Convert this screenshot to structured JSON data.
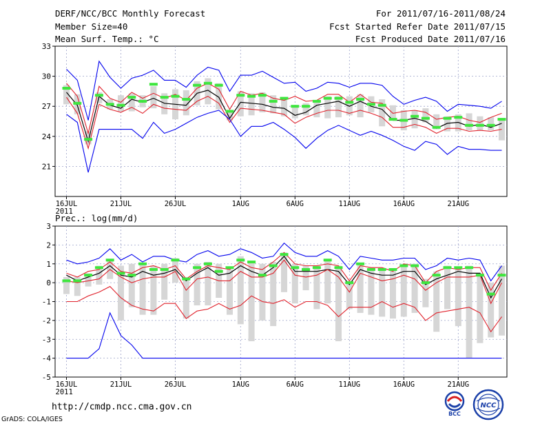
{
  "header": {
    "title": "DERF/NCC/BCC Monthly Forecast",
    "member_size": "Member Size=40",
    "variable": "Mean Surf. Temp.: °C",
    "period": "For 2011/07/16-2011/08/24",
    "started": "Fcst Started Refer Date 2011/07/15",
    "produced": "Fcst Produced Date 2011/07/16"
  },
  "footer": {
    "url": "http://cmdp.ncc.cma.gov.cn",
    "grads": "GrADS: COLA/IGES",
    "logo_left": "BCC",
    "logo_right": "NCC"
  },
  "colors": {
    "max_line": "#0000ee",
    "spread_line": "#e0202a",
    "mean_line": "#000000",
    "ensemble_bar": "#d6d6d6",
    "member_mark": "#3ee63e",
    "grid": "#9aa0c8"
  },
  "chart_data": [
    {
      "type": "line",
      "title": "Mean Surf. Temp.: °C",
      "xlabel": "",
      "ylabel": "°C",
      "ylim": [
        18,
        33
      ],
      "yticks": [
        21,
        24,
        27,
        30,
        33
      ],
      "x_tick_labels": [
        {
          "day": 0,
          "label": "16JUL",
          "sub": "2011"
        },
        {
          "day": 5,
          "label": "21JUL"
        },
        {
          "day": 10,
          "label": "26JUL"
        },
        {
          "day": 16,
          "label": "1AUG"
        },
        {
          "day": 21,
          "label": "6AUG"
        },
        {
          "day": 26,
          "label": "11AUG"
        },
        {
          "day": 31,
          "label": "16AUG"
        },
        {
          "day": 36,
          "label": "21AUG"
        }
      ],
      "grid": true,
      "series": [
        {
          "name": "max",
          "color": "#0000ee",
          "values": [
            30.7,
            29.6,
            25.6,
            31.5,
            29.9,
            28.8,
            29.8,
            30.1,
            30.6,
            29.6,
            29.6,
            28.9,
            30.1,
            30.9,
            30.6,
            28.5,
            30.1,
            30.1,
            30.5,
            29.9,
            29.3,
            29.4,
            28.5,
            28.8,
            29.4,
            29.3,
            28.9,
            29.3,
            29.3,
            29.1,
            28.0,
            27.2,
            27.6,
            27.9,
            27.5,
            26.5,
            27.2,
            27.1,
            27.0,
            26.8,
            27.5
          ]
        },
        {
          "name": "upper",
          "color": "#e0202a",
          "values": [
            29.3,
            28.0,
            24.3,
            29.0,
            27.8,
            27.4,
            28.4,
            27.8,
            28.3,
            27.8,
            28.2,
            27.6,
            28.8,
            29.3,
            28.7,
            26.7,
            28.5,
            28.1,
            28.3,
            27.8,
            27.6,
            28.0,
            27.5,
            27.6,
            28.2,
            28.2,
            27.4,
            28.2,
            27.4,
            27.3,
            26.3,
            26.5,
            26.6,
            26.4,
            25.7,
            25.9,
            26.0,
            25.6,
            25.4,
            25.9,
            26.3
          ]
        },
        {
          "name": "mean",
          "color": "#000000",
          "values": [
            28.4,
            27.1,
            23.5,
            28.0,
            27.1,
            26.8,
            27.7,
            27.4,
            27.8,
            27.3,
            27.2,
            27.1,
            28.3,
            28.6,
            27.9,
            25.8,
            27.4,
            27.3,
            27.2,
            26.9,
            26.8,
            26.1,
            26.4,
            27.1,
            27.3,
            27.5,
            27.0,
            27.5,
            27.0,
            26.7,
            25.6,
            25.6,
            25.8,
            25.5,
            24.8,
            25.3,
            25.4,
            25.0,
            25.2,
            24.9,
            25.3
          ]
        },
        {
          "name": "lower",
          "color": "#e0202a",
          "values": [
            27.9,
            26.3,
            22.8,
            27.2,
            26.7,
            26.4,
            26.9,
            26.3,
            27.2,
            26.8,
            26.7,
            26.6,
            27.5,
            28.0,
            27.3,
            25.4,
            26.8,
            26.7,
            26.6,
            26.4,
            26.2,
            25.3,
            25.9,
            26.3,
            26.6,
            26.6,
            26.3,
            26.6,
            26.3,
            25.9,
            24.9,
            24.9,
            25.2,
            24.9,
            24.3,
            24.8,
            24.8,
            24.5,
            24.6,
            24.5,
            24.7
          ]
        },
        {
          "name": "min",
          "color": "#0000ee",
          "values": [
            26.2,
            25.4,
            20.4,
            24.7,
            24.7,
            24.7,
            24.7,
            23.8,
            25.4,
            24.3,
            24.7,
            25.3,
            25.9,
            26.3,
            26.6,
            25.7,
            24.0,
            25.0,
            25.0,
            25.4,
            24.7,
            23.9,
            22.8,
            23.8,
            24.6,
            25.1,
            24.6,
            24.1,
            24.5,
            24.1,
            23.6,
            23.0,
            22.6,
            23.5,
            23.2,
            22.2,
            23.0,
            22.7,
            22.7,
            22.6,
            22.6
          ]
        }
      ],
      "bars": [
        [
          27.2,
          29.1
        ],
        [
          26.2,
          28.2
        ],
        [
          23.2,
          24.5
        ],
        [
          27.3,
          28.4
        ],
        [
          26.7,
          27.7
        ],
        [
          26.5,
          28.1
        ],
        [
          26.5,
          28.3
        ],
        [
          26.9,
          28.1
        ],
        [
          26.8,
          29.0
        ],
        [
          26.2,
          28.3
        ],
        [
          25.7,
          28.7
        ],
        [
          26.1,
          28.6
        ],
        [
          27.1,
          29.5
        ],
        [
          27.2,
          29.8
        ],
        [
          26.7,
          29.3
        ],
        [
          25.6,
          26.6
        ],
        [
          26.0,
          28.5
        ],
        [
          26.1,
          28.3
        ],
        [
          26.4,
          28.4
        ],
        [
          26.3,
          28.1
        ],
        [
          26.0,
          27.8
        ],
        [
          25.8,
          26.9
        ],
        [
          26.1,
          27.3
        ],
        [
          25.9,
          27.5
        ],
        [
          25.8,
          28.0
        ],
        [
          25.9,
          28.0
        ],
        [
          26.1,
          28.0
        ],
        [
          25.9,
          28.2
        ],
        [
          26.4,
          28.0
        ],
        [
          25.0,
          27.7
        ],
        [
          25.8,
          27.1
        ],
        [
          24.6,
          26.6
        ],
        [
          24.8,
          26.6
        ],
        [
          25.4,
          26.8
        ],
        [
          24.7,
          26.2
        ],
        [
          24.5,
          26.0
        ],
        [
          24.5,
          26.2
        ],
        [
          24.6,
          26.3
        ],
        [
          24.6,
          26.0
        ],
        [
          24.6,
          25.9
        ],
        [
          23.6,
          25.6
        ]
      ],
      "member": [
        28.8,
        27.3,
        23.7,
        28.1,
        27.2,
        27.1,
        27.9,
        27.5,
        29.2,
        27.9,
        28.0,
        27.7,
        29.1,
        29.3,
        29.1,
        26.5,
        28.1,
        28.0,
        28.1,
        27.5,
        27.8,
        27.0,
        27.0,
        27.5,
        27.8,
        27.8,
        27.4,
        27.7,
        27.2,
        27.1,
        25.7,
        25.6,
        26.0,
        25.8,
        24.9,
        25.8,
        25.9,
        25.1,
        25.1,
        25.1,
        25.7
      ]
    },
    {
      "type": "line",
      "title": "Prec.: log(mm/d)",
      "xlabel": "",
      "ylabel": "log(mm/d)",
      "ylim": [
        -5,
        3
      ],
      "yticks": [
        -5,
        -4,
        -3,
        -2,
        -1,
        0,
        1,
        2,
        3
      ],
      "x_tick_labels": [
        {
          "day": 0,
          "label": "16JUL",
          "sub": "2011"
        },
        {
          "day": 5,
          "label": "21JUL"
        },
        {
          "day": 10,
          "label": "26JUL"
        },
        {
          "day": 16,
          "label": "1AUG"
        },
        {
          "day": 21,
          "label": "6AUG"
        },
        {
          "day": 26,
          "label": "11AUG"
        },
        {
          "day": 31,
          "label": "16AUG"
        },
        {
          "day": 36,
          "label": "21AUG"
        }
      ],
      "grid": true,
      "series": [
        {
          "name": "max",
          "color": "#0000ee",
          "values": [
            1.2,
            1.0,
            1.1,
            1.3,
            1.8,
            1.2,
            1.5,
            1.1,
            1.4,
            1.4,
            1.2,
            1.1,
            1.5,
            1.7,
            1.4,
            1.5,
            1.8,
            1.6,
            1.3,
            1.4,
            2.1,
            1.6,
            1.4,
            1.4,
            1.7,
            1.4,
            0.7,
            1.4,
            1.3,
            1.2,
            1.2,
            1.3,
            1.3,
            0.7,
            0.9,
            1.3,
            1.2,
            1.3,
            1.2,
            0.1,
            0.9
          ]
        },
        {
          "name": "upper",
          "color": "#e0202a",
          "values": [
            0.5,
            0.3,
            0.6,
            0.7,
            1.1,
            0.6,
            0.5,
            0.8,
            0.9,
            0.7,
            0.9,
            0.2,
            0.6,
            0.9,
            0.8,
            0.7,
            1.1,
            0.8,
            0.7,
            1.1,
            1.6,
            1.0,
            0.9,
            0.9,
            1.0,
            0.9,
            0.1,
            0.9,
            0.8,
            0.8,
            0.6,
            1.0,
            0.9,
            0.0,
            0.6,
            0.8,
            0.7,
            0.8,
            0.8,
            -0.4,
            0.5
          ]
        },
        {
          "name": "mean",
          "color": "#000000",
          "values": [
            0.4,
            0.1,
            0.3,
            0.5,
            0.9,
            0.4,
            0.3,
            0.6,
            0.4,
            0.5,
            0.7,
            0.1,
            0.5,
            0.8,
            0.4,
            0.5,
            0.9,
            0.6,
            0.4,
            0.8,
            1.4,
            0.6,
            0.6,
            0.6,
            0.7,
            0.6,
            -0.1,
            0.7,
            0.5,
            0.4,
            0.4,
            0.6,
            0.6,
            -0.1,
            0.2,
            0.4,
            0.6,
            0.5,
            0.5,
            -0.8,
            0.2
          ]
        },
        {
          "name": "lower",
          "color": "#e0202a",
          "values": [
            0.1,
            0.0,
            0.1,
            0.2,
            0.7,
            0.3,
            0.0,
            0.2,
            0.3,
            0.3,
            0.6,
            -0.4,
            0.2,
            0.3,
            0.1,
            0.1,
            0.6,
            0.3,
            0.3,
            0.5,
            1.2,
            0.4,
            0.3,
            0.4,
            0.7,
            0.3,
            -0.5,
            0.5,
            0.3,
            0.1,
            0.2,
            0.4,
            0.2,
            -0.4,
            0.0,
            0.3,
            0.3,
            0.3,
            0.4,
            -1.1,
            0.0
          ]
        },
        {
          "name": "min_spread",
          "color": "#e0202a",
          "values": [
            -1.0,
            -1.0,
            -0.7,
            -0.5,
            -0.2,
            -0.8,
            -1.2,
            -1.4,
            -1.5,
            -1.1,
            -1.1,
            -1.9,
            -1.5,
            -1.4,
            -1.1,
            -1.4,
            -1.2,
            -0.7,
            -1.0,
            -1.1,
            -0.9,
            -1.3,
            -1.0,
            -1.0,
            -1.2,
            -1.8,
            -1.3,
            -1.3,
            -1.3,
            -1.0,
            -1.3,
            -1.1,
            -1.3,
            -2.0,
            -1.6,
            -1.5,
            -1.4,
            -1.3,
            -1.6,
            -2.6,
            -1.8
          ]
        },
        {
          "name": "min",
          "color": "#0000ee",
          "values": [
            -4.0,
            -4.0,
            -4.0,
            -3.5,
            -1.6,
            -2.8,
            -3.3,
            -4.0,
            -4.0,
            -4.0,
            -4.0,
            -4.0,
            -4.0,
            -4.0,
            -4.0,
            -4.0,
            -4.0,
            -4.0,
            -4.0,
            -4.0,
            -4.0,
            -4.0,
            -4.0,
            -4.0,
            -4.0,
            -4.0,
            -4.0,
            -4.0,
            -4.0,
            -4.0,
            -4.0,
            -4.0,
            -4.0,
            -4.0,
            -4.0,
            -4.0,
            -4.0,
            -4.0,
            -4.0,
            -4.0,
            -4.0
          ]
        }
      ],
      "bars": [
        [
          -0.6,
          0.3
        ],
        [
          -0.7,
          0.3
        ],
        [
          -0.2,
          0.5
        ],
        [
          -0.1,
          0.9
        ],
        [
          0.2,
          1.2
        ],
        [
          -2.0,
          0.9
        ],
        [
          -1.3,
          1.0
        ],
        [
          -1.7,
          1.0
        ],
        [
          -1.7,
          0.9
        ],
        [
          -0.9,
          1.0
        ],
        [
          0.0,
          1.3
        ],
        [
          -1.9,
          0.3
        ],
        [
          -1.2,
          1.0
        ],
        [
          -1.2,
          1.1
        ],
        [
          -0.8,
          1.0
        ],
        [
          -1.7,
          0.7
        ],
        [
          -2.2,
          1.4
        ],
        [
          -3.1,
          1.1
        ],
        [
          -2.0,
          1.0
        ],
        [
          -2.3,
          1.1
        ],
        [
          -0.5,
          1.6
        ],
        [
          -1.1,
          1.0
        ],
        [
          -0.4,
          0.9
        ],
        [
          -1.4,
          0.9
        ],
        [
          -1.1,
          1.2
        ],
        [
          -3.1,
          0.9
        ],
        [
          -1.4,
          0.1
        ],
        [
          -1.6,
          1.0
        ],
        [
          -1.7,
          0.8
        ],
        [
          -1.8,
          0.8
        ],
        [
          -1.9,
          0.7
        ],
        [
          -1.8,
          1.0
        ],
        [
          -1.6,
          1.0
        ],
        [
          -1.3,
          0.2
        ],
        [
          -2.6,
          0.6
        ],
        [
          -1.4,
          0.9
        ],
        [
          -2.3,
          0.8
        ],
        [
          -4.0,
          0.9
        ],
        [
          -3.2,
          0.5
        ],
        [
          -2.9,
          0.0
        ],
        [
          -2.8,
          0.9
        ]
      ],
      "member": [
        0.1,
        0.1,
        0.4,
        0.8,
        1.2,
        0.5,
        0.4,
        1.0,
        0.7,
        0.7,
        1.2,
        0.2,
        0.8,
        1.0,
        0.6,
        0.8,
        1.2,
        1.1,
        0.4,
        0.9,
        1.5,
        0.8,
        0.7,
        0.8,
        1.2,
        0.8,
        0.0,
        1.0,
        0.7,
        0.7,
        0.7,
        0.9,
        0.9,
        0.0,
        0.4,
        0.8,
        0.8,
        0.8,
        0.4,
        -0.6,
        0.4
      ]
    }
  ]
}
